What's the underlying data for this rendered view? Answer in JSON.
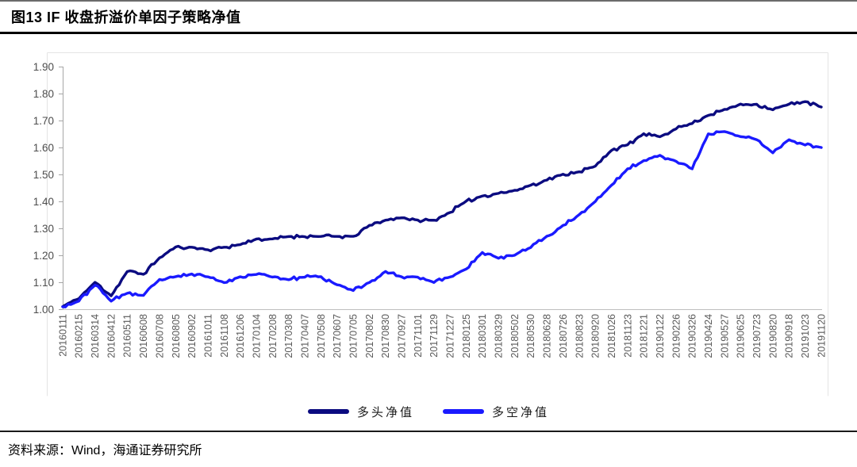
{
  "header": {
    "title": "图13 IF 收盘折溢价单因子策略净值"
  },
  "footer": {
    "source": "资料来源：Wind，海通证券研究所"
  },
  "chart_data": {
    "type": "line",
    "title": "图13 IF 收盘折溢价单因子策略净值",
    "xlabel": "",
    "ylabel": "",
    "ylim": [
      1.0,
      1.9
    ],
    "y_ticks": [
      1.0,
      1.1,
      1.2,
      1.3,
      1.4,
      1.5,
      1.6,
      1.7,
      1.8,
      1.9
    ],
    "grid": false,
    "legend_position": "bottom",
    "axis_color": "#a6a6a6",
    "tick_label_color": "#595959",
    "frame_color": "#e4e4e4",
    "noise_amplitude": 0.007,
    "noise_subdivisions": 6,
    "x_labels": [
      "20160111",
      "20160215",
      "20160314",
      "20160412",
      "20160511",
      "20160608",
      "20160708",
      "20160805",
      "20160902",
      "20161011",
      "20161108",
      "20161206",
      "20170104",
      "20170208",
      "20170308",
      "20170407",
      "20170508",
      "20170607",
      "20170705",
      "20170802",
      "20170830",
      "20170927",
      "20171101",
      "20171129",
      "20171227",
      "20180125",
      "20180301",
      "20180329",
      "20180502",
      "20180530",
      "20180628",
      "20180726",
      "20180823",
      "20180920",
      "20181026",
      "20181123",
      "20181221",
      "20190122",
      "20190226",
      "20190326",
      "20190424",
      "20190527",
      "20190625",
      "20190723",
      "20190820",
      "20190918",
      "20191023",
      "20191120"
    ],
    "series": [
      {
        "name": "多头净值",
        "color": "#0b0b80",
        "noise_seed": 11,
        "values": [
          1.01,
          1.04,
          1.1,
          1.05,
          1.14,
          1.13,
          1.19,
          1.23,
          1.23,
          1.22,
          1.23,
          1.24,
          1.26,
          1.26,
          1.27,
          1.27,
          1.27,
          1.27,
          1.27,
          1.31,
          1.33,
          1.34,
          1.33,
          1.33,
          1.36,
          1.4,
          1.42,
          1.43,
          1.44,
          1.46,
          1.48,
          1.5,
          1.51,
          1.53,
          1.59,
          1.61,
          1.65,
          1.64,
          1.67,
          1.69,
          1.72,
          1.74,
          1.76,
          1.76,
          1.74,
          1.76,
          1.77,
          1.75
        ]
      },
      {
        "name": "多空净值",
        "color": "#1a1aff",
        "noise_seed": 23,
        "values": [
          1.01,
          1.03,
          1.09,
          1.03,
          1.06,
          1.05,
          1.11,
          1.12,
          1.13,
          1.12,
          1.1,
          1.12,
          1.13,
          1.12,
          1.11,
          1.12,
          1.12,
          1.09,
          1.07,
          1.1,
          1.14,
          1.12,
          1.12,
          1.1,
          1.12,
          1.15,
          1.21,
          1.19,
          1.2,
          1.23,
          1.27,
          1.31,
          1.35,
          1.4,
          1.46,
          1.52,
          1.55,
          1.57,
          1.55,
          1.52,
          1.65,
          1.66,
          1.64,
          1.63,
          1.58,
          1.63,
          1.61,
          1.6
        ]
      }
    ]
  }
}
